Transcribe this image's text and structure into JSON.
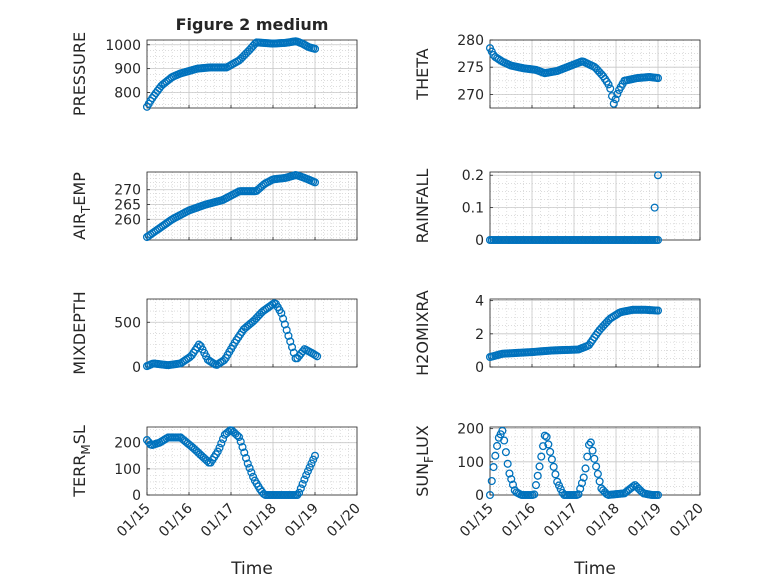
{
  "figure": {
    "title": "Figure 2 medium",
    "xlabel": "Time"
  },
  "colors": {
    "marker": "#0072BD",
    "axis": "#262626",
    "grid": "#c8c8c8",
    "background": "#ffffff"
  },
  "x_ticks": [
    "01/15",
    "01/16",
    "01/17",
    "01/18",
    "01/19",
    "01/20"
  ],
  "chart_data": [
    {
      "id": "pressure",
      "type": "scatter",
      "ylabel": "PRESSURE",
      "ylim": [
        735,
        1020
      ],
      "yticks": [
        800,
        900,
        1000
      ],
      "anchors": [
        [
          0,
          740
        ],
        [
          0.1,
          770
        ],
        [
          0.2,
          795
        ],
        [
          0.35,
          830
        ],
        [
          0.6,
          865
        ],
        [
          0.8,
          880
        ],
        [
          1.2,
          900
        ],
        [
          1.5,
          905
        ],
        [
          1.9,
          905
        ],
        [
          2.2,
          935
        ],
        [
          2.45,
          980
        ],
        [
          2.6,
          1010
        ],
        [
          3.0,
          1005
        ],
        [
          3.3,
          1008
        ],
        [
          3.55,
          1015
        ],
        [
          3.7,
          1005
        ],
        [
          3.85,
          990
        ],
        [
          4.0,
          983
        ]
      ]
    },
    {
      "id": "theta",
      "type": "scatter",
      "ylabel": "THETA",
      "ylim": [
        267.5,
        280
      ],
      "yticks": [
        270,
        275,
        280
      ],
      "anchors": [
        [
          0,
          278.5
        ],
        [
          0.1,
          277
        ],
        [
          0.3,
          276
        ],
        [
          0.5,
          275.3
        ],
        [
          0.8,
          274.8
        ],
        [
          1.1,
          274.5
        ],
        [
          1.3,
          273.9
        ],
        [
          1.6,
          274.3
        ],
        [
          1.9,
          275.2
        ],
        [
          2.2,
          276.1
        ],
        [
          2.5,
          275.0
        ],
        [
          2.7,
          273.3
        ],
        [
          2.85,
          271.5
        ],
        [
          2.95,
          268.2
        ],
        [
          3.05,
          270.5
        ],
        [
          3.2,
          272.5
        ],
        [
          3.5,
          273.0
        ],
        [
          3.8,
          273.2
        ],
        [
          4.0,
          273.0
        ]
      ]
    },
    {
      "id": "air_temp",
      "type": "scatter",
      "ylabel": "AIR_TEMP",
      "ylim": [
        253,
        276
      ],
      "yticks": [
        260,
        265,
        270
      ],
      "anchors": [
        [
          0,
          254
        ],
        [
          0.3,
          257
        ],
        [
          0.6,
          260
        ],
        [
          1.0,
          263
        ],
        [
          1.4,
          265
        ],
        [
          1.8,
          266.5
        ],
        [
          2.2,
          269.5
        ],
        [
          2.6,
          269.5
        ],
        [
          2.8,
          272
        ],
        [
          3.0,
          273.5
        ],
        [
          3.3,
          274
        ],
        [
          3.55,
          275
        ],
        [
          3.75,
          274
        ],
        [
          4.0,
          272.5
        ]
      ]
    },
    {
      "id": "rainfall",
      "type": "scatter",
      "ylabel": "RAINFALL",
      "ylim": [
        0,
        0.21
      ],
      "yticks": [
        0,
        0.1,
        0.2
      ],
      "anchors": [
        [
          0,
          0
        ],
        [
          3.9,
          0
        ],
        [
          4.0,
          0
        ]
      ],
      "extra_points": [
        [
          3.92,
          0.1
        ],
        [
          4.0,
          0.2
        ]
      ]
    },
    {
      "id": "mixdepth",
      "type": "scatter",
      "ylabel": "MIXDEPTH",
      "ylim": [
        0,
        760
      ],
      "yticks": [
        0,
        500
      ],
      "anchors": [
        [
          0,
          10
        ],
        [
          0.15,
          40
        ],
        [
          0.5,
          20
        ],
        [
          0.8,
          40
        ],
        [
          1.05,
          120
        ],
        [
          1.25,
          260
        ],
        [
          1.45,
          80
        ],
        [
          1.65,
          20
        ],
        [
          1.85,
          80
        ],
        [
          2.1,
          280
        ],
        [
          2.3,
          420
        ],
        [
          2.55,
          520
        ],
        [
          2.75,
          620
        ],
        [
          3.05,
          720
        ],
        [
          3.2,
          600
        ],
        [
          3.4,
          300
        ],
        [
          3.55,
          80
        ],
        [
          3.75,
          200
        ],
        [
          3.95,
          150
        ],
        [
          4.05,
          120
        ]
      ]
    },
    {
      "id": "h2omixra",
      "type": "scatter",
      "ylabel": "H2OMIXRA",
      "ylim": [
        0,
        4.1
      ],
      "yticks": [
        0,
        2,
        4
      ],
      "anchors": [
        [
          0,
          0.6
        ],
        [
          0.3,
          0.8
        ],
        [
          1.0,
          0.9
        ],
        [
          1.5,
          1.0
        ],
        [
          2.1,
          1.05
        ],
        [
          2.35,
          1.3
        ],
        [
          2.6,
          2.2
        ],
        [
          2.85,
          2.9
        ],
        [
          3.1,
          3.3
        ],
        [
          3.4,
          3.45
        ],
        [
          3.7,
          3.45
        ],
        [
          4.0,
          3.4
        ]
      ]
    },
    {
      "id": "terr_msl",
      "type": "scatter",
      "ylabel": "TERR_MSL",
      "ylim": [
        0,
        260
      ],
      "yticks": [
        0,
        100,
        200
      ],
      "anchors": [
        [
          0,
          210
        ],
        [
          0.1,
          190
        ],
        [
          0.3,
          200
        ],
        [
          0.5,
          220
        ],
        [
          0.8,
          220
        ],
        [
          1.1,
          180
        ],
        [
          1.3,
          150
        ],
        [
          1.5,
          120
        ],
        [
          1.7,
          170
        ],
        [
          1.85,
          230
        ],
        [
          2.0,
          250
        ],
        [
          2.2,
          220
        ],
        [
          2.4,
          120
        ],
        [
          2.55,
          60
        ],
        [
          2.7,
          20
        ],
        [
          2.8,
          0
        ],
        [
          3.4,
          0
        ],
        [
          3.6,
          0
        ],
        [
          3.8,
          80
        ],
        [
          4.0,
          150
        ]
      ]
    },
    {
      "id": "sun_flux",
      "type": "scatter",
      "ylabel": "SUN_FLUX",
      "ylim": [
        0,
        205
      ],
      "yticks": [
        0,
        100,
        200
      ],
      "anchors": [
        [
          0,
          0
        ],
        [
          0.1,
          100
        ],
        [
          0.2,
          170
        ],
        [
          0.3,
          195
        ],
        [
          0.45,
          70
        ],
        [
          0.6,
          10
        ],
        [
          0.75,
          0
        ],
        [
          1.05,
          0
        ],
        [
          1.2,
          100
        ],
        [
          1.32,
          190
        ],
        [
          1.45,
          120
        ],
        [
          1.6,
          40
        ],
        [
          1.75,
          0
        ],
        [
          2.1,
          0
        ],
        [
          2.25,
          60
        ],
        [
          2.38,
          170
        ],
        [
          2.5,
          100
        ],
        [
          2.65,
          20
        ],
        [
          2.8,
          0
        ],
        [
          3.2,
          5
        ],
        [
          3.45,
          30
        ],
        [
          3.65,
          5
        ],
        [
          3.85,
          0
        ],
        [
          4.0,
          0
        ]
      ]
    }
  ]
}
